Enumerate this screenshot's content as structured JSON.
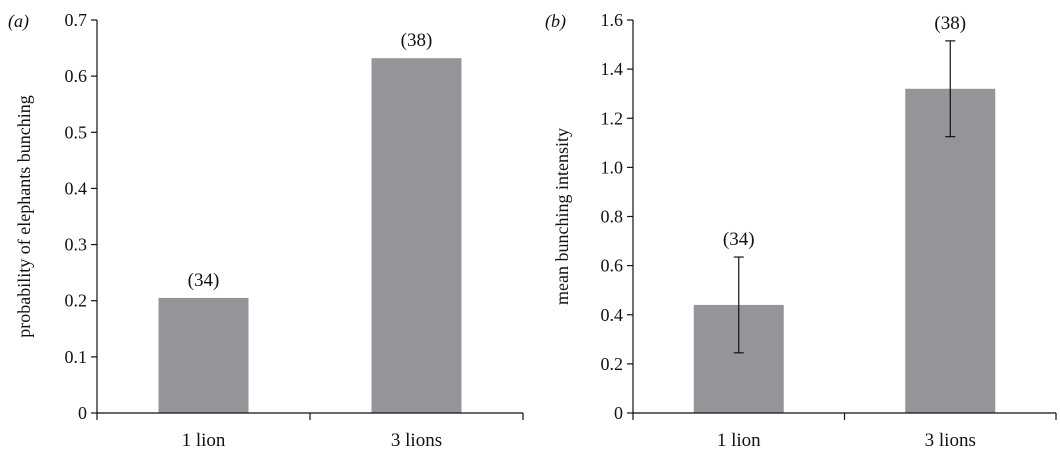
{
  "colors": {
    "bar": "#939598",
    "axis": "#111111",
    "text": "#111111"
  },
  "chart_data": [
    {
      "type": "bar",
      "panel_label": "(a)",
      "ylabel": "probability of elephants bunching",
      "xlabel": "",
      "categories": [
        "1 lion",
        "3 lions"
      ],
      "values": [
        0.205,
        0.632
      ],
      "data_labels": [
        "(34)",
        "(38)"
      ],
      "ylim": [
        0,
        0.7
      ],
      "yticks": [
        0,
        0.1,
        0.2,
        0.3,
        0.4,
        0.5,
        0.6,
        0.7
      ],
      "ytick_labels": [
        "0",
        "0.1",
        "0.2",
        "0.3",
        "0.4",
        "0.5",
        "0.6",
        "0.7"
      ],
      "grid": false,
      "legend": "none"
    },
    {
      "type": "bar",
      "panel_label": "(b)",
      "ylabel": "mean bunching intensity",
      "xlabel": "",
      "categories": [
        "1 lion",
        "3 lions"
      ],
      "values": [
        0.44,
        1.32
      ],
      "error_low": [
        0.245,
        1.125
      ],
      "error_high": [
        0.635,
        1.515
      ],
      "data_labels": [
        "(34)",
        "(38)"
      ],
      "ylim": [
        0,
        1.6
      ],
      "yticks": [
        0,
        0.2,
        0.4,
        0.6,
        0.8,
        1.0,
        1.2,
        1.4,
        1.6
      ],
      "ytick_labels": [
        "0",
        "0.2",
        "0.4",
        "0.6",
        "0.8",
        "1.0",
        "1.2",
        "1.4",
        "1.6"
      ],
      "grid": false,
      "legend": "none"
    }
  ]
}
